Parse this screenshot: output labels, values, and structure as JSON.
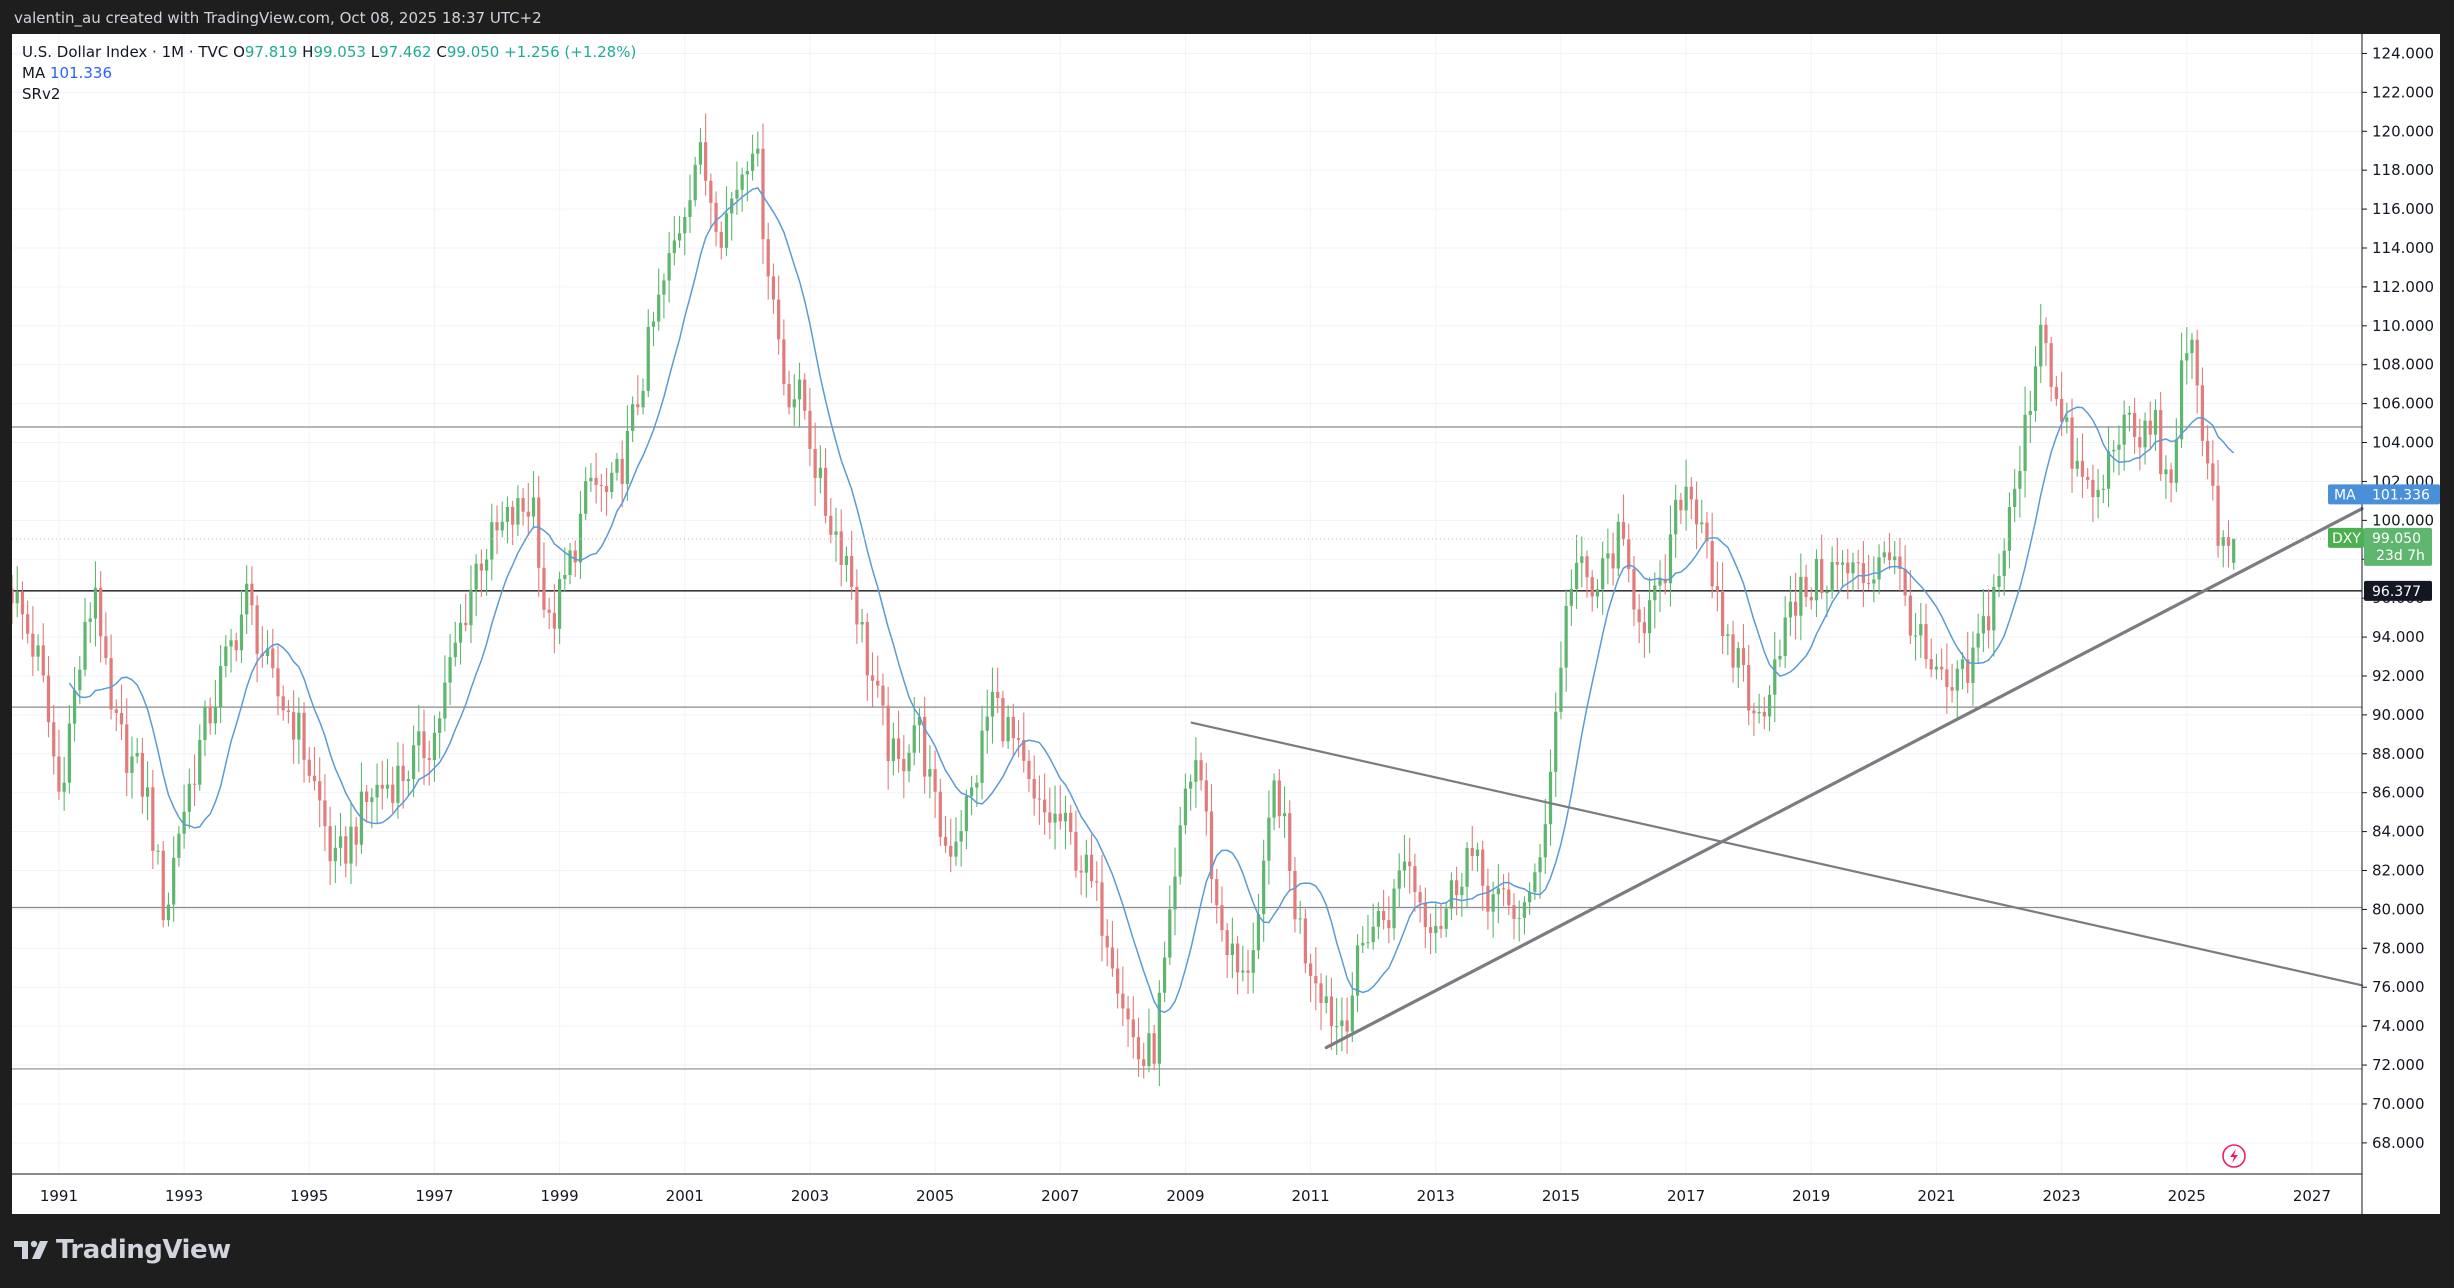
{
  "header": {
    "attribution": "valentin_au created with TradingView.com, Oct 08, 2025 18:37 UTC+2"
  },
  "legend": {
    "symbol": "U.S. Dollar Index · 1M · TVC",
    "open_label": "O",
    "open": "97.819",
    "high_label": "H",
    "high": "99.053",
    "low_label": "L",
    "low": "97.462",
    "close_label": "C",
    "close": "99.050",
    "change": "+1.256 (+1.28%)",
    "ma_label": "MA",
    "ma_value": "101.336",
    "indicator2": "SRv2"
  },
  "footer": {
    "brand": "TradingView"
  },
  "colors": {
    "up": "#5fb66f",
    "down": "#e27c7c",
    "ma": "#5b9bd5",
    "trendline": "#7b7b80",
    "level_line": "#8a8a8a",
    "background": "#ffffff",
    "frame": "#1e1e1e"
  },
  "chart_data": {
    "type": "candlestick",
    "interval": "1M",
    "series_name": "DXY",
    "y_ticks": [
      "68.000",
      "70.000",
      "72.000",
      "74.000",
      "76.000",
      "78.000",
      "80.000",
      "82.000",
      "84.000",
      "86.000",
      "88.000",
      "90.000",
      "92.000",
      "94.000",
      "96.000",
      "98.000",
      "100.000",
      "102.000",
      "104.000",
      "106.000",
      "108.000",
      "110.000",
      "112.000",
      "114.000",
      "116.000",
      "118.000",
      "120.000",
      "122.000",
      "124.000"
    ],
    "x_ticks": [
      "1991",
      "1993",
      "1995",
      "1997",
      "1999",
      "2001",
      "2003",
      "2005",
      "2007",
      "2009",
      "2011",
      "2013",
      "2015",
      "2017",
      "2019",
      "2021",
      "2023",
      "2025",
      "2027"
    ],
    "ylim": [
      66.4,
      125.0
    ],
    "xlim": [
      1990.25,
      2027.8
    ],
    "last_price": {
      "label": "DXY",
      "value": "99.050",
      "countdown": "23d 7h"
    },
    "ma_tag": {
      "label": "MA",
      "value": "101.336"
    },
    "level_tag": "96.377",
    "horizontal_levels": [
      104.8,
      96.377,
      90.4,
      80.1,
      71.8
    ],
    "trendlines": [
      {
        "from": [
          2011.25,
          72.9
        ],
        "to": [
          2027.8,
          100.6
        ]
      },
      {
        "from": [
          2009.1,
          89.6
        ],
        "to": [
          2027.8,
          76.1
        ]
      }
    ],
    "anchors": [
      [
        1990.25,
        96.5
      ],
      [
        1990.7,
        92.5
      ],
      [
        1991.0,
        86.0
      ],
      [
        1991.3,
        92.0
      ],
      [
        1991.6,
        97.0
      ],
      [
        1991.8,
        90.0
      ],
      [
        1992.1,
        88.0
      ],
      [
        1992.4,
        86.0
      ],
      [
        1992.7,
        79.5
      ],
      [
        1992.9,
        84.0
      ],
      [
        1993.3,
        89.0
      ],
      [
        1993.7,
        93.0
      ],
      [
        1994.0,
        96.0
      ],
      [
        1994.4,
        91.5
      ],
      [
        1994.8,
        89.5
      ],
      [
        1995.2,
        85.0
      ],
      [
        1995.4,
        82.0
      ],
      [
        1995.7,
        84.0
      ],
      [
        1996.0,
        86.0
      ],
      [
        1996.5,
        87.0
      ],
      [
        1997.0,
        89.0
      ],
      [
        1997.3,
        93.0
      ],
      [
        1997.7,
        98.0
      ],
      [
        1998.2,
        100.0
      ],
      [
        1998.6,
        101.0
      ],
      [
        1998.8,
        94.0
      ],
      [
        1999.1,
        97.0
      ],
      [
        1999.5,
        102.0
      ],
      [
        1999.8,
        101.0
      ],
      [
        2000.1,
        104.0
      ],
      [
        2000.5,
        110.0
      ],
      [
        2000.9,
        115.0
      ],
      [
        2001.2,
        119.0
      ],
      [
        2001.6,
        115.0
      ],
      [
        2001.9,
        118.0
      ],
      [
        2002.1,
        120.0
      ],
      [
        2002.3,
        114.0
      ],
      [
        2002.6,
        107.0
      ],
      [
        2002.9,
        106.0
      ],
      [
        2003.2,
        101.0
      ],
      [
        2003.6,
        98.0
      ],
      [
        2003.9,
        93.0
      ],
      [
        2004.2,
        89.0
      ],
      [
        2004.4,
        87.0
      ],
      [
        2004.7,
        90.0
      ],
      [
        2005.0,
        85.0
      ],
      [
        2005.2,
        83.0
      ],
      [
        2005.6,
        86.0
      ],
      [
        2005.9,
        91.0
      ],
      [
        2006.2,
        89.0
      ],
      [
        2006.6,
        85.0
      ],
      [
        2007.0,
        84.5
      ],
      [
        2007.4,
        82.0
      ],
      [
        2007.8,
        78.5
      ],
      [
        2008.1,
        74.0
      ],
      [
        2008.3,
        72.0
      ],
      [
        2008.5,
        73.0
      ],
      [
        2008.8,
        80.0
      ],
      [
        2009.0,
        86.0
      ],
      [
        2009.2,
        88.0
      ],
      [
        2009.5,
        80.0
      ],
      [
        2009.9,
        76.0
      ],
      [
        2010.2,
        80.0
      ],
      [
        2010.45,
        87.0
      ],
      [
        2010.7,
        81.0
      ],
      [
        2010.9,
        78.0
      ],
      [
        2011.2,
        76.0
      ],
      [
        2011.4,
        74.0
      ],
      [
        2011.6,
        75.0
      ],
      [
        2011.9,
        79.0
      ],
      [
        2012.3,
        80.0
      ],
      [
        2012.5,
        83.0
      ],
      [
        2012.8,
        80.0
      ],
      [
        2013.1,
        79.5
      ],
      [
        2013.5,
        83.0
      ],
      [
        2013.8,
        81.0
      ],
      [
        2014.1,
        80.0
      ],
      [
        2014.5,
        80.0
      ],
      [
        2014.8,
        86.0
      ],
      [
        2015.0,
        93.0
      ],
      [
        2015.2,
        98.0
      ],
      [
        2015.5,
        96.0
      ],
      [
        2015.9,
        99.0
      ],
      [
        2016.3,
        95.0
      ],
      [
        2016.6,
        96.0
      ],
      [
        2016.95,
        102.0
      ],
      [
        2017.3,
        100.0
      ],
      [
        2017.6,
        93.0
      ],
      [
        2017.9,
        93.0
      ],
      [
        2018.1,
        89.0
      ],
      [
        2018.5,
        94.0
      ],
      [
        2018.9,
        96.5
      ],
      [
        2019.4,
        97.5
      ],
      [
        2019.9,
        97.0
      ],
      [
        2020.2,
        99.0
      ],
      [
        2020.5,
        96.0
      ],
      [
        2020.9,
        92.0
      ],
      [
        2021.2,
        91.0
      ],
      [
        2021.5,
        92.0
      ],
      [
        2021.9,
        96.0
      ],
      [
        2022.3,
        102.0
      ],
      [
        2022.7,
        111.0
      ],
      [
        2022.9,
        106.0
      ],
      [
        2023.3,
        102.0
      ],
      [
        2023.6,
        101.0
      ],
      [
        2023.9,
        105.0
      ],
      [
        2024.2,
        104.0
      ],
      [
        2024.5,
        105.0
      ],
      [
        2024.7,
        101.0
      ],
      [
        2024.9,
        107.0
      ],
      [
        2025.1,
        108.5
      ],
      [
        2025.3,
        104.0
      ],
      [
        2025.5,
        99.5
      ],
      [
        2025.7,
        97.8
      ],
      [
        2025.77,
        99.05
      ]
    ],
    "last_candle": {
      "open": 97.819,
      "high": 99.053,
      "low": 97.462,
      "close": 99.05
    }
  }
}
